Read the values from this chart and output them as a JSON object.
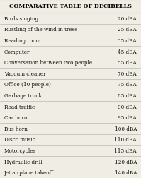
{
  "title": "COMPARATIVE TABLE OF DECIBELLS",
  "rows": [
    [
      "Birds singing",
      "20 dBA"
    ],
    [
      "Rustling of the wind in trees",
      "25 dBA"
    ],
    [
      "Reading room",
      "35 dBA"
    ],
    [
      "Computer",
      "45 dBA"
    ],
    [
      "Conversation between two people",
      "55 dBA"
    ],
    [
      "Vacuum cleaner",
      "70 dBA"
    ],
    [
      "Office (10 people)",
      "75 dBA"
    ],
    [
      "Garbage truck",
      "85 dBA"
    ],
    [
      "Road traffic",
      "90 dBA"
    ],
    [
      "Car horn",
      "95 dBA"
    ],
    [
      "Bus horn",
      "100 dBA"
    ],
    [
      "Disco music",
      "110 dBA"
    ],
    [
      "Motorcycles",
      "115 dBA"
    ],
    [
      "Hydraulic drill",
      "120 dBA"
    ],
    [
      "Jet airplane takeoff",
      "140 dBA"
    ]
  ],
  "bg_color": "#f0ede4",
  "line_color": "#aaaaaa",
  "title_fontsize": 5.8,
  "row_fontsize": 5.2,
  "title_color": "#000000",
  "text_color": "#111111",
  "figwidth": 1.99,
  "figheight": 2.53,
  "dpi": 100
}
